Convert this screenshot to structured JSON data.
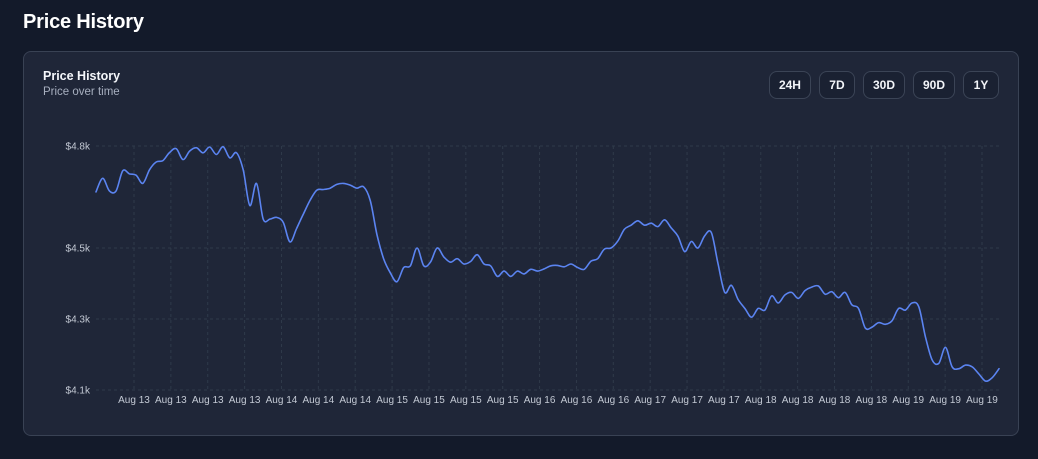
{
  "page": {
    "title": "Price History"
  },
  "card": {
    "title": "Price History",
    "subtitle": "Price over time"
  },
  "range_buttons": [
    {
      "label": "24H"
    },
    {
      "label": "7D"
    },
    {
      "label": "30D"
    },
    {
      "label": "90D"
    },
    {
      "label": "1Y"
    }
  ],
  "colors": {
    "page_background": "#131a2a",
    "card_background": "#1f2638",
    "line": "#5b84f1",
    "grid": "#2f3a4a"
  },
  "chart_data": {
    "type": "line",
    "title": "Price History",
    "subtitle": "Price over time",
    "xlabel": "",
    "ylabel": "",
    "grid": true,
    "ylim": [
      4100,
      4800
    ],
    "y_ticks": [
      4100,
      4300,
      4500,
      4800
    ],
    "y_tick_labels": [
      "$4.1k",
      "$4.3k",
      "$4.5k",
      "$4.8k"
    ],
    "x_tick_labels": [
      "Aug 13",
      "Aug 13",
      "Aug 13",
      "Aug 13",
      "Aug 14",
      "Aug 14",
      "Aug 14",
      "Aug 15",
      "Aug 15",
      "Aug 15",
      "Aug 15",
      "Aug 16",
      "Aug 16",
      "Aug 16",
      "Aug 17",
      "Aug 17",
      "Aug 17",
      "Aug 18",
      "Aug 18",
      "Aug 18",
      "Aug 18",
      "Aug 19",
      "Aug 19",
      "Aug 19"
    ],
    "series": [
      {
        "values": [
          4665,
          4705,
          4668,
          4668,
          4727,
          4718,
          4714,
          4690,
          4730,
          4753,
          4757,
          4781,
          4792,
          4760,
          4785,
          4795,
          4780,
          4797,
          4775,
          4798,
          4765,
          4780,
          4730,
          4625,
          4690,
          4585,
          4585,
          4590,
          4575,
          4518,
          4558,
          4600,
          4640,
          4670,
          4672,
          4676,
          4687,
          4690,
          4685,
          4676,
          4680,
          4640,
          4540,
          4470,
          4430,
          4405,
          4445,
          4450,
          4500,
          4450,
          4460,
          4500,
          4475,
          4460,
          4470,
          4455,
          4462,
          4481,
          4455,
          4450,
          4420,
          4435,
          4420,
          4435,
          4427,
          4440,
          4435,
          4441,
          4450,
          4451,
          4447,
          4455,
          4445,
          4440,
          4463,
          4470,
          4497,
          4500,
          4520,
          4555,
          4567,
          4580,
          4567,
          4573,
          4563,
          4583,
          4559,
          4535,
          4490,
          4519,
          4500,
          4536,
          4545,
          4455,
          4375,
          4395,
          4355,
          4330,
          4305,
          4330,
          4325,
          4365,
          4345,
          4368,
          4375,
          4358,
          4380,
          4390,
          4393,
          4370,
          4377,
          4360,
          4375,
          4340,
          4330,
          4275,
          4277,
          4290,
          4285,
          4295,
          4330,
          4325,
          4345,
          4335,
          4250,
          4185,
          4175,
          4220,
          4165,
          4160,
          4170,
          4165,
          4145,
          4125,
          4135,
          4160
        ]
      }
    ]
  }
}
